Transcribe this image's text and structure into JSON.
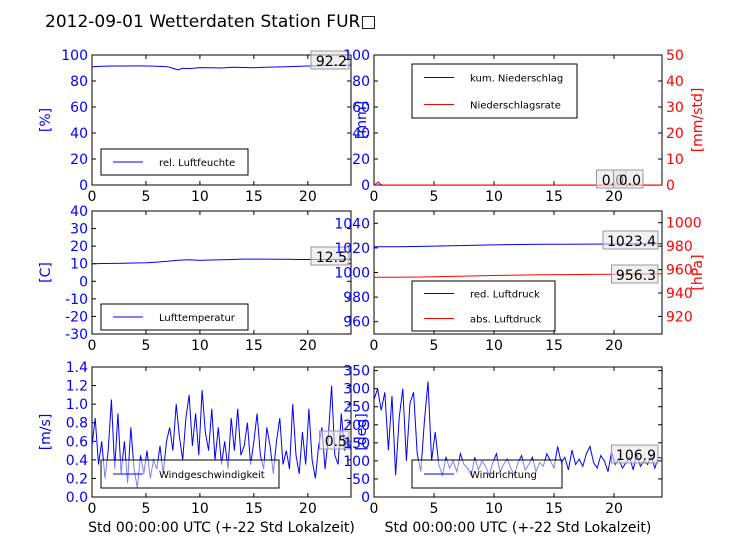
{
  "figure": {
    "title": "2012-09-01 Wetterdaten Station FUR□",
    "xlabel": "Std 00:00:00 UTC (+-22 Std Lokalzeit)"
  },
  "colors": {
    "blue": "#0000ff",
    "red": "#ff0000",
    "axis": "#000000",
    "legend_bg": "#ffffff"
  },
  "chart_data": [
    {
      "type": "line",
      "panel": "humidity",
      "ylabel": "[%]",
      "xlim": [
        0,
        24
      ],
      "ylim": [
        0,
        100
      ],
      "xticks": [
        0,
        5,
        10,
        15,
        20
      ],
      "yticks": [
        0,
        20,
        40,
        60,
        80,
        100
      ],
      "last_value_label": "92.2",
      "legend_placement": "lower-left",
      "series": [
        {
          "name": "rel. Luftfeuchte",
          "color": "#0000ff",
          "x": [
            0,
            1,
            2,
            3,
            4,
            5,
            6,
            7,
            7.6,
            8,
            8.4,
            9,
            10,
            11,
            12,
            13,
            14,
            15,
            16,
            17,
            18,
            19,
            20,
            21,
            22,
            23,
            24
          ],
          "y": [
            91,
            91.3,
            91.5,
            91.5,
            91.6,
            91.5,
            91.3,
            91,
            89.5,
            88.6,
            89.8,
            89.5,
            90.3,
            90.2,
            90,
            90.5,
            90.4,
            90.2,
            90.6,
            90.8,
            91,
            91.2,
            91.5,
            91.8,
            92,
            92.1,
            92.2
          ]
        }
      ]
    },
    {
      "type": "line",
      "panel": "precipitation",
      "ylabel": "[mm]",
      "ylabel_right": "[mm/std]",
      "xlim": [
        0,
        24
      ],
      "ylim": [
        0,
        100
      ],
      "ylim_right": [
        0,
        50
      ],
      "xticks": [
        0,
        5,
        10,
        15,
        20
      ],
      "yticks": [
        0,
        20,
        40,
        60,
        80,
        100
      ],
      "yticks_right": [
        0,
        10,
        20,
        30,
        40,
        50
      ],
      "last_value_labels": [
        "0.0",
        "0.0"
      ],
      "legend_placement": "upper-left",
      "series": [
        {
          "name": "kum. Niederschlag",
          "color": "#0000ff",
          "axis": "left",
          "x": [
            0,
            24
          ],
          "y": [
            0,
            0
          ]
        },
        {
          "name": "Niederschlagsrate",
          "color": "#ff0000",
          "axis": "right",
          "x": [
            0,
            0.2,
            0.35,
            0.5,
            0.7,
            24
          ],
          "y": [
            0,
            0.6,
            1.2,
            0.4,
            0,
            0
          ]
        }
      ]
    },
    {
      "type": "line",
      "panel": "temperature",
      "ylabel": "[C]",
      "xlim": [
        0,
        24
      ],
      "ylim": [
        -30,
        40
      ],
      "xticks": [
        0,
        5,
        10,
        15,
        20
      ],
      "yticks": [
        -30,
        -20,
        -10,
        0,
        10,
        20,
        30,
        40
      ],
      "last_value_label": "12.5",
      "legend_placement": "lower-left",
      "series": [
        {
          "name": "Lufttemperatur",
          "color": "#0000ff",
          "x": [
            0,
            1,
            2,
            3,
            4,
            5,
            6,
            7,
            8,
            9,
            10,
            11,
            12,
            13,
            14,
            15,
            16,
            17,
            18,
            19,
            20,
            21,
            22,
            23,
            24
          ],
          "y": [
            10,
            10.1,
            10.2,
            10.3,
            10.4,
            10.6,
            10.9,
            11.4,
            12,
            12.3,
            11.9,
            12.1,
            12.3,
            12.4,
            12.6,
            12.6,
            12.6,
            12.5,
            12.5,
            12.4,
            12.4,
            12.4,
            12.4,
            12.5,
            12.5
          ]
        }
      ]
    },
    {
      "type": "line",
      "panel": "pressure",
      "ylabel_right": "[hPa]",
      "xlim": [
        0,
        24
      ],
      "ylim": [
        950,
        1050
      ],
      "ylim_right": [
        905,
        1010
      ],
      "xticks": [
        0,
        5,
        10,
        15,
        20
      ],
      "yticks": [
        960,
        980,
        1000,
        1020,
        1040
      ],
      "yticks_right": [
        920,
        940,
        960,
        980,
        1000
      ],
      "last_value_labels": [
        "1023.4",
        "956.3"
      ],
      "legend_placement": "lower-left",
      "series": [
        {
          "name": "red. Luftdruck",
          "color": "#0000ff",
          "axis": "left",
          "x": [
            0,
            2,
            4,
            6,
            8,
            10,
            12,
            14,
            16,
            18,
            20,
            22,
            24
          ],
          "y": [
            1021,
            1021,
            1021.2,
            1021.6,
            1022,
            1022.4,
            1022.8,
            1023,
            1023,
            1023.1,
            1023.2,
            1023.3,
            1023.4
          ]
        },
        {
          "name": "abs. Luftdruck",
          "color": "#ff0000",
          "axis": "right",
          "x": [
            0,
            2,
            4,
            6,
            8,
            10,
            12,
            14,
            16,
            18,
            20,
            22,
            24
          ],
          "y": [
            953.5,
            953.5,
            953.7,
            954.1,
            954.5,
            954.9,
            955.3,
            955.6,
            955.7,
            955.9,
            956.0,
            956.2,
            956.3
          ]
        }
      ]
    },
    {
      "type": "line",
      "panel": "wind-speed",
      "ylabel": "[m/s]",
      "xlim": [
        0,
        24
      ],
      "ylim": [
        0,
        1.4
      ],
      "xticks": [
        0,
        5,
        10,
        15,
        20
      ],
      "yticks": [
        0.0,
        0.2,
        0.4,
        0.6,
        0.8,
        1.0,
        1.2,
        1.4
      ],
      "last_value_label": "0.5",
      "legend_placement": "lower-center",
      "series": [
        {
          "name": "Windgeschwindigkeit",
          "color": "#0000ff",
          "x": [
            0,
            0.3,
            0.6,
            0.9,
            1.2,
            1.5,
            1.8,
            2.1,
            2.4,
            2.7,
            3.0,
            3.3,
            3.6,
            3.9,
            4.2,
            4.5,
            4.8,
            5.1,
            5.4,
            5.7,
            6.0,
            6.3,
            6.6,
            6.9,
            7.2,
            7.5,
            7.8,
            8.1,
            8.4,
            8.7,
            9.0,
            9.3,
            9.6,
            9.9,
            10.2,
            10.5,
            10.8,
            11.1,
            11.4,
            11.7,
            12.0,
            12.3,
            12.6,
            12.9,
            13.2,
            13.5,
            13.8,
            14.1,
            14.4,
            14.7,
            15.0,
            15.3,
            15.6,
            15.9,
            16.2,
            16.5,
            16.8,
            17.1,
            17.4,
            17.7,
            18.0,
            18.3,
            18.6,
            18.9,
            19.2,
            19.5,
            19.8,
            20.1,
            20.4,
            20.7,
            21.0,
            21.3,
            21.6,
            21.9,
            22.2,
            22.5,
            22.8,
            23.1,
            23.4,
            23.7,
            24.0
          ],
          "y": [
            0.55,
            0.85,
            0.35,
            0.6,
            0.2,
            0.5,
            1.05,
            0.3,
            0.9,
            0.25,
            0.6,
            0.15,
            0.75,
            0.3,
            0.1,
            0.45,
            0.25,
            0.5,
            0.2,
            0.4,
            0.3,
            0.55,
            0.25,
            0.6,
            0.75,
            0.5,
            1.0,
            0.65,
            0.4,
            0.85,
            1.1,
            0.55,
            0.9,
            0.45,
            1.15,
            0.7,
            0.5,
            0.95,
            0.4,
            0.75,
            0.35,
            0.6,
            0.3,
            0.85,
            0.5,
            0.95,
            0.45,
            0.55,
            0.8,
            0.35,
            0.6,
            0.9,
            0.45,
            0.3,
            0.75,
            0.55,
            0.25,
            0.6,
            0.85,
            0.35,
            0.5,
            0.3,
            1.0,
            0.45,
            0.25,
            0.7,
            0.35,
            0.95,
            0.4,
            0.2,
            0.55,
            0.75,
            0.3,
            0.65,
            1.2,
            0.45,
            0.35,
            0.9,
            0.5,
            0.65,
            0.5
          ]
        }
      ]
    },
    {
      "type": "line",
      "panel": "wind-direction",
      "ylabel": "[deg]",
      "xlim": [
        0,
        24
      ],
      "ylim": [
        0,
        360
      ],
      "xticks": [
        0,
        5,
        10,
        15,
        20
      ],
      "yticks": [
        0,
        50,
        100,
        150,
        200,
        250,
        300,
        350
      ],
      "last_value_label": "106.9",
      "legend_placement": "lower-left",
      "series": [
        {
          "name": "Windrichtung",
          "color": "#0000ff",
          "x": [
            0,
            0.3,
            0.6,
            0.9,
            1.2,
            1.5,
            1.8,
            2.1,
            2.4,
            2.7,
            3.0,
            3.3,
            3.6,
            3.9,
            4.2,
            4.5,
            4.8,
            5.1,
            5.4,
            5.7,
            6.0,
            6.3,
            6.6,
            6.9,
            7.2,
            7.5,
            7.8,
            8.1,
            8.4,
            8.7,
            9.0,
            9.3,
            9.6,
            9.9,
            10.2,
            10.5,
            10.8,
            11.1,
            11.4,
            11.7,
            12.0,
            12.3,
            12.6,
            12.9,
            13.2,
            13.5,
            13.8,
            14.1,
            14.4,
            14.7,
            15.0,
            15.3,
            15.6,
            15.9,
            16.2,
            16.5,
            16.8,
            17.1,
            17.4,
            17.7,
            18.0,
            18.3,
            18.6,
            18.9,
            19.2,
            19.5,
            19.8,
            20.1,
            20.4,
            20.7,
            21.0,
            21.3,
            21.6,
            21.9,
            22.2,
            22.5,
            22.8,
            23.1,
            23.4,
            23.7,
            24.0
          ],
          "y": [
            270,
            300,
            240,
            290,
            130,
            280,
            60,
            220,
            300,
            100,
            260,
            290,
            120,
            70,
            210,
            320,
            100,
            180,
            90,
            60,
            110,
            80,
            100,
            70,
            120,
            90,
            80,
            60,
            110,
            75,
            100,
            85,
            60,
            95,
            120,
            70,
            90,
            105,
            80,
            60,
            95,
            115,
            75,
            90,
            110,
            70,
            95,
            85,
            120,
            100,
            80,
            140,
            95,
            110,
            75,
            130,
            90,
            105,
            85,
            120,
            140,
            95,
            80,
            115,
            100,
            70,
            125,
            90,
            105,
            80,
            95,
            110,
            75,
            120,
            85,
            100,
            90,
            115,
            80,
            110,
            107
          ]
        }
      ]
    }
  ]
}
